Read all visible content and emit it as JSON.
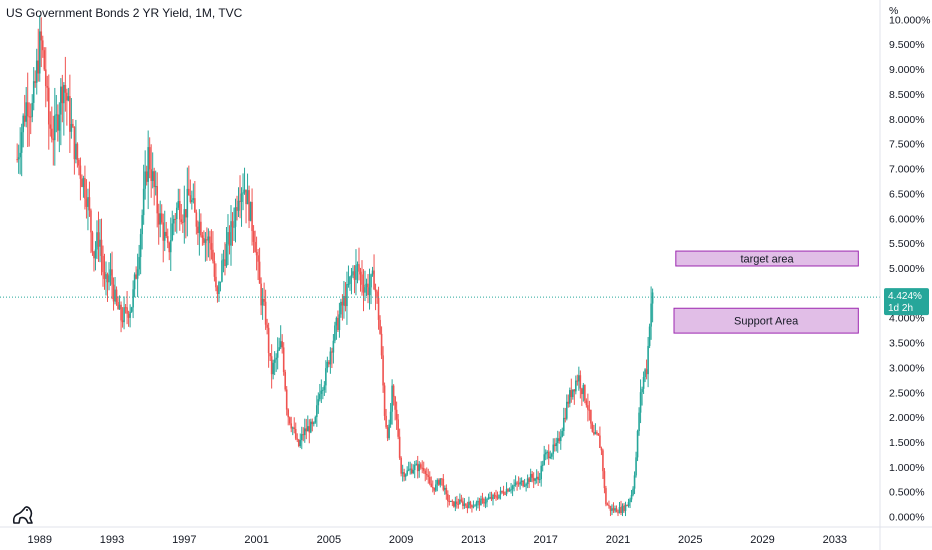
{
  "chart": {
    "title": "US Government Bonds 2 YR Yield, 1M, TVC",
    "axis_unit": "%",
    "current_value_label": "4.424%",
    "countdown_label": "1d 2h",
    "logo_icon": "tradingview-logo-icon"
  },
  "colors": {
    "up": "#26a69a",
    "down": "#ef5350",
    "price_line": "#26a69a",
    "zone_fill": "#e1bee7",
    "zone_border": "#9c27b0"
  },
  "chart_data": {
    "type": "candlestick",
    "title": "US Government Bonds 2 YR Yield, 1M, TVC",
    "ylabel": "%",
    "ylim": [
      -0.2,
      10.4
    ],
    "xlim": [
      1986.8,
      2035.5
    ],
    "x_ticks": [
      1989,
      1993,
      1997,
      2001,
      2005,
      2009,
      2013,
      2017,
      2021,
      2025,
      2029,
      2033
    ],
    "x_tick_labels": [
      "1989",
      "1993",
      "1997",
      "2001",
      "2005",
      "2009",
      "2013",
      "2017",
      "2021",
      "2025",
      "2029",
      "2033"
    ],
    "y_ticks": [
      0,
      0.5,
      1,
      1.5,
      2,
      2.5,
      3,
      3.5,
      4,
      4.5,
      5,
      5.5,
      6,
      6.5,
      7,
      7.5,
      8,
      8.5,
      9,
      9.5,
      10
    ],
    "y_tick_labels": [
      "0.000%",
      "0.500%",
      "1.000%",
      "1.500%",
      "2.000%",
      "2.500%",
      "3.000%",
      "3.500%",
      "4.000%",
      "4.500%",
      "5.000%",
      "5.500%",
      "6.000%",
      "6.500%",
      "7.000%",
      "7.500%",
      "8.000%",
      "8.500%",
      "9.000%",
      "9.500%",
      "10.000%"
    ],
    "current_value": 4.424,
    "grid": false,
    "close_path": [
      [
        1987.75,
        7.2
      ],
      [
        1988.0,
        7.8
      ],
      [
        1988.3,
        8.4
      ],
      [
        1988.6,
        8.2
      ],
      [
        1988.9,
        9.2
      ],
      [
        1989.05,
        9.6
      ],
      [
        1989.3,
        8.9
      ],
      [
        1989.5,
        7.9
      ],
      [
        1989.8,
        7.7
      ],
      [
        1990.0,
        8.1
      ],
      [
        1990.3,
        8.8
      ],
      [
        1990.5,
        8.4
      ],
      [
        1990.7,
        7.9
      ],
      [
        1991.0,
        7.3
      ],
      [
        1991.3,
        6.9
      ],
      [
        1991.6,
        6.5
      ],
      [
        1992.0,
        5.3
      ],
      [
        1992.3,
        5.7
      ],
      [
        1992.6,
        4.6
      ],
      [
        1992.9,
        4.9
      ],
      [
        1993.2,
        4.3
      ],
      [
        1993.5,
        4.0
      ],
      [
        1993.8,
        4.1
      ],
      [
        1994.1,
        4.3
      ],
      [
        1994.4,
        5.1
      ],
      [
        1994.7,
        6.2
      ],
      [
        1995.0,
        7.3
      ],
      [
        1995.2,
        6.9
      ],
      [
        1995.5,
        6.2
      ],
      [
        1995.8,
        5.8
      ],
      [
        1996.1,
        5.3
      ],
      [
        1996.4,
        6.0
      ],
      [
        1996.7,
        6.3
      ],
      [
        1997.0,
        6.1
      ],
      [
        1997.3,
        6.5
      ],
      [
        1997.6,
        6.0
      ],
      [
        1997.9,
        5.9
      ],
      [
        1998.2,
        5.6
      ],
      [
        1998.5,
        5.5
      ],
      [
        1998.8,
        4.3
      ],
      [
        1999.1,
        5.1
      ],
      [
        1999.5,
        5.6
      ],
      [
        1999.8,
        6.1
      ],
      [
        2000.0,
        6.6
      ],
      [
        2000.3,
        6.7
      ],
      [
        2000.6,
        6.2
      ],
      [
        2000.9,
        5.6
      ],
      [
        2001.2,
        4.5
      ],
      [
        2001.5,
        4.0
      ],
      [
        2001.8,
        2.9
      ],
      [
        2002.1,
        3.2
      ],
      [
        2002.4,
        3.5
      ],
      [
        2002.7,
        2.1
      ],
      [
        2003.0,
        1.8
      ],
      [
        2003.3,
        1.4
      ],
      [
        2003.6,
        1.7
      ],
      [
        2003.9,
        1.8
      ],
      [
        2004.2,
        1.8
      ],
      [
        2004.5,
        2.6
      ],
      [
        2004.8,
        2.8
      ],
      [
        2005.1,
        3.4
      ],
      [
        2005.4,
        3.8
      ],
      [
        2005.7,
        4.2
      ],
      [
        2006.0,
        4.5
      ],
      [
        2006.3,
        4.9
      ],
      [
        2006.6,
        5.0
      ],
      [
        2006.9,
        4.7
      ],
      [
        2007.2,
        4.6
      ],
      [
        2007.5,
        4.8
      ],
      [
        2007.8,
        3.9
      ],
      [
        2008.1,
        2.0
      ],
      [
        2008.3,
        1.6
      ],
      [
        2008.5,
        2.5
      ],
      [
        2008.8,
        1.8
      ],
      [
        2009.0,
        0.9
      ],
      [
        2009.3,
        0.9
      ],
      [
        2009.7,
        1.0
      ],
      [
        2010.0,
        1.0
      ],
      [
        2010.3,
        1.0
      ],
      [
        2010.6,
        0.6
      ],
      [
        2010.9,
        0.6
      ],
      [
        2011.2,
        0.8
      ],
      [
        2011.5,
        0.4
      ],
      [
        2011.8,
        0.25
      ],
      [
        2012.2,
        0.3
      ],
      [
        2012.6,
        0.25
      ],
      [
        2013.0,
        0.25
      ],
      [
        2013.4,
        0.3
      ],
      [
        2013.8,
        0.35
      ],
      [
        2014.2,
        0.4
      ],
      [
        2014.6,
        0.5
      ],
      [
        2015.0,
        0.6
      ],
      [
        2015.4,
        0.65
      ],
      [
        2015.8,
        0.7
      ],
      [
        2016.2,
        0.8
      ],
      [
        2016.6,
        0.75
      ],
      [
        2016.9,
        1.2
      ],
      [
        2017.2,
        1.3
      ],
      [
        2017.6,
        1.4
      ],
      [
        2017.9,
        1.8
      ],
      [
        2018.2,
        2.3
      ],
      [
        2018.5,
        2.6
      ],
      [
        2018.8,
        2.85
      ],
      [
        2019.0,
        2.6
      ],
      [
        2019.3,
        2.3
      ],
      [
        2019.6,
        1.6
      ],
      [
        2019.9,
        1.6
      ],
      [
        2020.1,
        1.3
      ],
      [
        2020.3,
        0.3
      ],
      [
        2020.6,
        0.15
      ],
      [
        2020.9,
        0.15
      ],
      [
        2021.2,
        0.15
      ],
      [
        2021.5,
        0.25
      ],
      [
        2021.8,
        0.5
      ],
      [
        2022.0,
        1.2
      ],
      [
        2022.2,
        2.3
      ],
      [
        2022.45,
        2.9
      ],
      [
        2022.6,
        3.0
      ],
      [
        2022.8,
        4.3
      ],
      [
        2022.95,
        4.424
      ]
    ]
  },
  "zones": [
    {
      "name": "target-zone",
      "label": "target area",
      "x_start": 2024.2,
      "x_end": 2034.3,
      "y_low": 5.05,
      "y_high": 5.35
    },
    {
      "name": "support-zone",
      "label": "Support Area",
      "x_start": 2024.1,
      "x_end": 2034.3,
      "y_low": 3.7,
      "y_high": 4.2
    }
  ]
}
